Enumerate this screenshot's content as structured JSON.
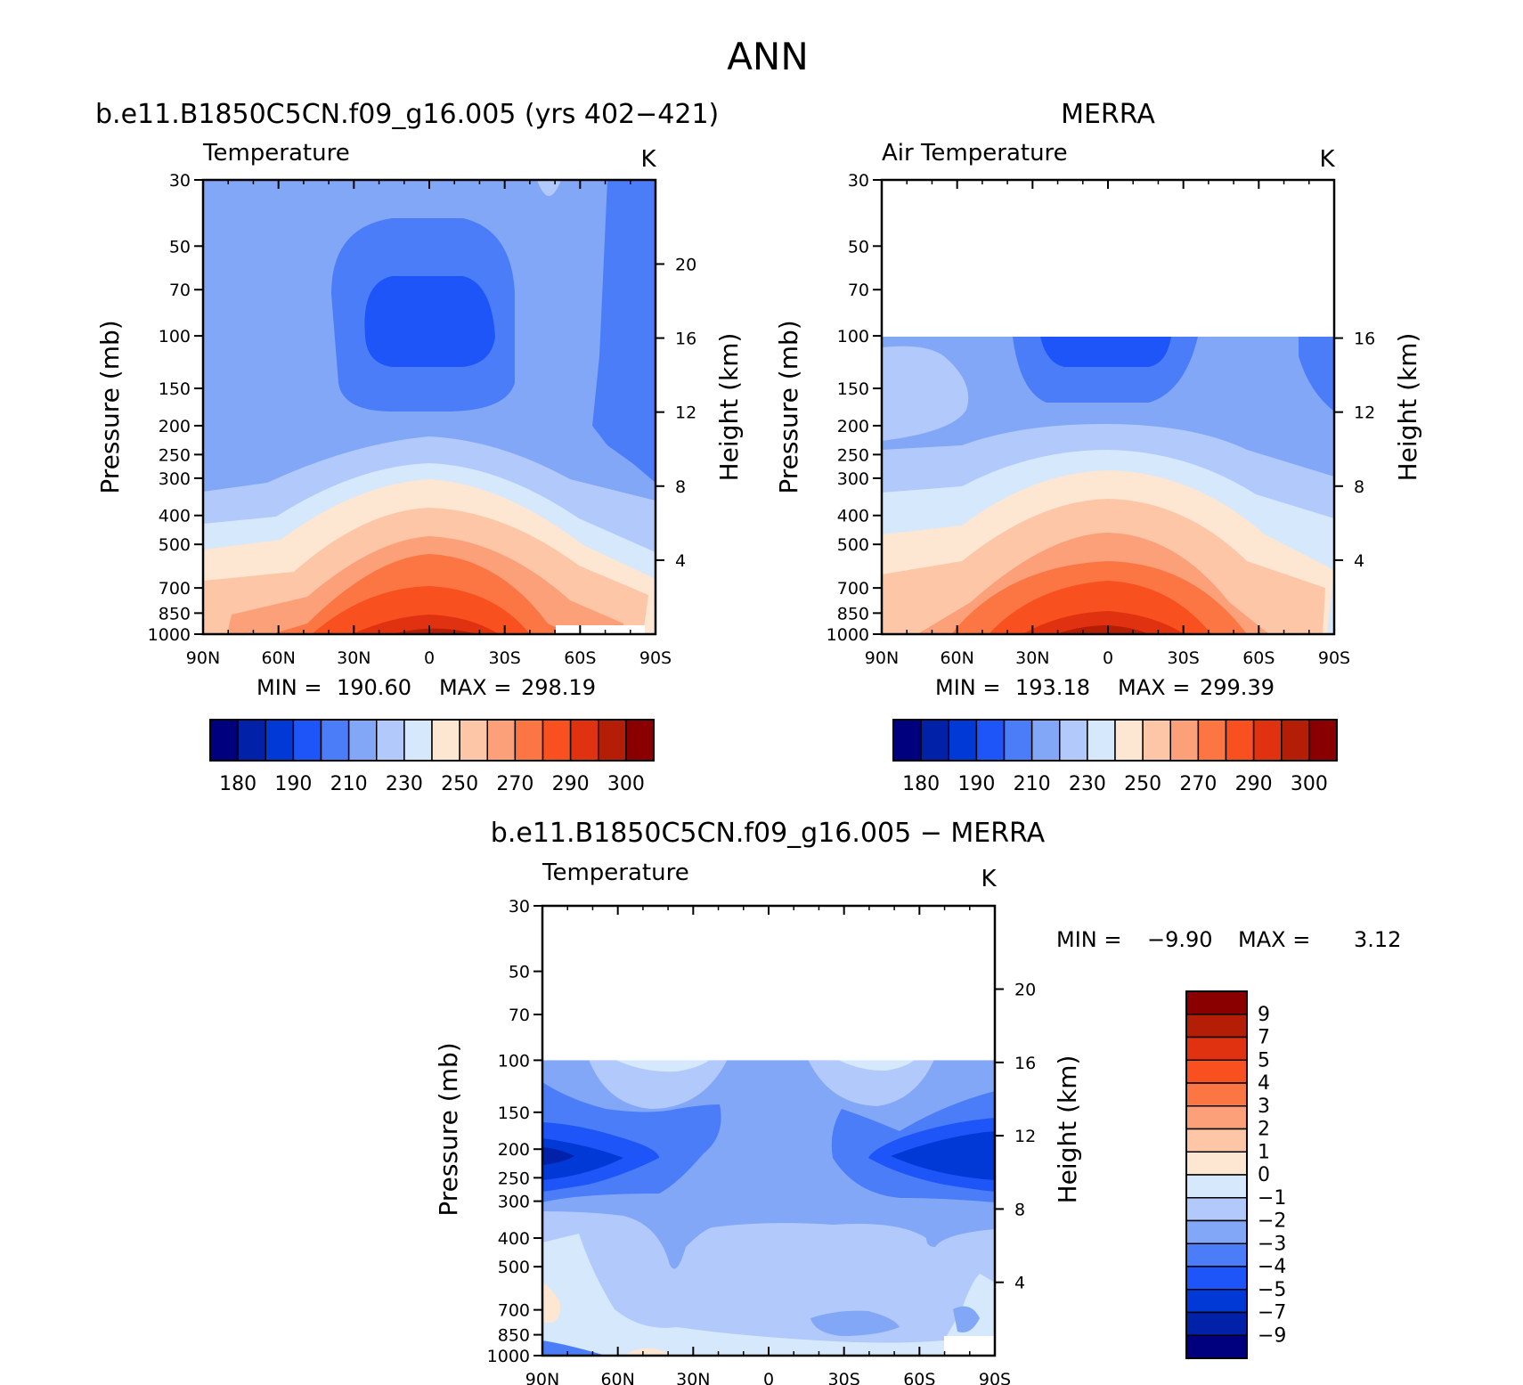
{
  "figure_title": "ANN",
  "colors": {
    "abs": [
      "#00007e",
      "#0021a8",
      "#0039d6",
      "#1e55f8",
      "#4b7df9",
      "#83a7f7",
      "#b2c9fb",
      "#d6e8fc",
      "#fde6d2",
      "#fdc6a6",
      "#fca07a",
      "#fc7644",
      "#f8501e",
      "#e03210",
      "#b41e06",
      "#8a0000"
    ],
    "diff": [
      "#00007e",
      "#0021a8",
      "#0039d6",
      "#1e55f8",
      "#4b7df9",
      "#83a7f7",
      "#b2c9fb",
      "#d6e8fc",
      "#fde6d2",
      "#fdc6a6",
      "#fca07a",
      "#fc7644",
      "#f8501e",
      "#e03210",
      "#b41e06",
      "#8a0000"
    ]
  },
  "chart_data": [
    {
      "type": "heatmap",
      "title": "b.e11.B1850C5CN.f09_g16.005 (yrs 402−421)",
      "left_label": "Temperature",
      "right_label": "K",
      "ylabel": "Pressure (mb)",
      "y2label": "Height (km)",
      "x_ticks": [
        "90N",
        "60N",
        "30N",
        "0",
        "30S",
        "60S",
        "90S"
      ],
      "x_values": [
        90,
        60,
        30,
        0,
        -30,
        -60,
        -90
      ],
      "y_ticks": [
        "30",
        "50",
        "70",
        "100",
        "150",
        "200",
        "250",
        "300",
        "400",
        "500",
        "700",
        "850",
        "1000"
      ],
      "y_values": [
        30,
        50,
        70,
        100,
        150,
        200,
        250,
        300,
        400,
        500,
        700,
        850,
        1000
      ],
      "y2_ticks": [
        "20",
        "16",
        "12",
        "8",
        "4"
      ],
      "y2_values": [
        20,
        16,
        12,
        8,
        4
      ],
      "y_scale": "log",
      "stats": {
        "min_label": "MIN =",
        "min": "190.60",
        "max_label": "MAX =",
        "max": "298.19"
      },
      "colorbar": {
        "orientation": "horizontal",
        "labels": [
          "180",
          "190",
          "210",
          "230",
          "250",
          "270",
          "290",
          "300"
        ],
        "levels": [
          180,
          185,
          190,
          200,
          210,
          220,
          230,
          240,
          250,
          260,
          270,
          280,
          290,
          295,
          300
        ]
      },
      "data_top_mb": 30
    },
    {
      "type": "heatmap",
      "title": "MERRA",
      "left_label": "Air Temperature",
      "right_label": "K",
      "ylabel": "Pressure (mb)",
      "y2label": "Height (km)",
      "x_ticks": [
        "90N",
        "60N",
        "30N",
        "0",
        "30S",
        "60S",
        "90S"
      ],
      "x_values": [
        90,
        60,
        30,
        0,
        -30,
        -60,
        -90
      ],
      "y_ticks": [
        "30",
        "50",
        "70",
        "100",
        "150",
        "200",
        "250",
        "300",
        "400",
        "500",
        "700",
        "850",
        "1000"
      ],
      "y_values": [
        30,
        50,
        70,
        100,
        150,
        200,
        250,
        300,
        400,
        500,
        700,
        850,
        1000
      ],
      "y2_ticks": [
        "16",
        "12",
        "8",
        "4"
      ],
      "y2_values": [
        16,
        12,
        8,
        4
      ],
      "y_scale": "log",
      "stats": {
        "min_label": "MIN =",
        "min": "193.18",
        "max_label": "MAX =",
        "max": "299.39"
      },
      "colorbar": {
        "orientation": "horizontal",
        "labels": [
          "180",
          "190",
          "210",
          "230",
          "250",
          "270",
          "290",
          "300"
        ],
        "levels": [
          180,
          185,
          190,
          200,
          210,
          220,
          230,
          240,
          250,
          260,
          270,
          280,
          290,
          295,
          300
        ]
      },
      "data_top_mb": 100
    },
    {
      "type": "heatmap",
      "title": "b.e11.B1850C5CN.f09_g16.005 − MERRA",
      "left_label": "Temperature",
      "right_label": "K",
      "ylabel": "Pressure (mb)",
      "y2label": "Height (km)",
      "x_ticks": [
        "90N",
        "60N",
        "30N",
        "0",
        "30S",
        "60S",
        "90S"
      ],
      "x_values": [
        90,
        60,
        30,
        0,
        -30,
        -60,
        -90
      ],
      "y_ticks": [
        "30",
        "50",
        "70",
        "100",
        "150",
        "200",
        "250",
        "300",
        "400",
        "500",
        "700",
        "850",
        "1000"
      ],
      "y_values": [
        30,
        50,
        70,
        100,
        150,
        200,
        250,
        300,
        400,
        500,
        700,
        850,
        1000
      ],
      "y2_ticks": [
        "20",
        "16",
        "12",
        "8",
        "4"
      ],
      "y2_values": [
        20,
        16,
        12,
        8,
        4
      ],
      "y_scale": "log",
      "stats": {
        "min_label": "MIN =",
        "min": "−9.90",
        "max_label": "MAX =",
        "max": "3.12"
      },
      "colorbar": {
        "orientation": "vertical",
        "labels": [
          "9",
          "7",
          "5",
          "4",
          "3",
          "2",
          "1",
          "0",
          "−1",
          "−2",
          "−3",
          "−4",
          "−5",
          "−7",
          "−9"
        ],
        "levels": [
          9,
          7,
          5,
          4,
          3,
          2,
          1,
          0,
          -1,
          -2,
          -3,
          -4,
          -5,
          -7,
          -9
        ]
      },
      "data_top_mb": 100
    }
  ]
}
